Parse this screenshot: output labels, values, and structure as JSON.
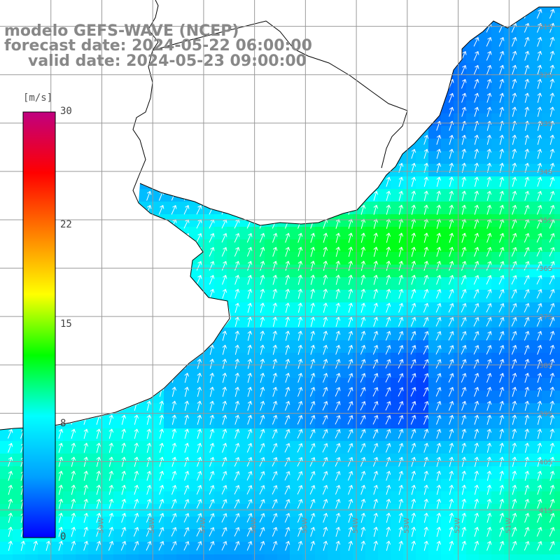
{
  "title": {
    "line1": "modelo GEFS-WAVE (NCEP)",
    "line2": "forecast date: 2024-05-22 06:00:00",
    "line3": "valid date: 2024-05-23 09:00:00"
  },
  "colorbar": {
    "unit": "[m/s]",
    "min": 0,
    "max": 30,
    "ticks": [
      {
        "value": 30,
        "label": "30"
      },
      {
        "value": 22,
        "label": "22"
      },
      {
        "value": 15,
        "label": "15"
      },
      {
        "value": 8,
        "label": "8"
      },
      {
        "value": 0,
        "label": "0"
      }
    ],
    "colors": [
      "#0000ff",
      "#00a0ff",
      "#00ffff",
      "#00ff00",
      "#ffff00",
      "#ff8000",
      "#ff0000",
      "#c00080"
    ]
  },
  "map": {
    "lon_min": -61,
    "lon_max": -50,
    "lat_min": -41.6,
    "lat_max": -30.6,
    "gridlines_lon": [
      -60,
      -59,
      -58,
      -57,
      -56,
      -55,
      -54,
      -53,
      -52,
      -51
    ],
    "gridlines_lat": [
      -31,
      -32,
      -33,
      -34,
      -35,
      -36,
      -37,
      -38,
      -39,
      -40,
      -41
    ],
    "lon_labels": [
      "60W",
      "59W",
      "58W",
      "57W",
      "56W",
      "55W",
      "54W",
      "53W",
      "52W",
      "51W"
    ],
    "lat_labels": [
      "31S",
      "32S",
      "33S",
      "34S",
      "35S",
      "36S",
      "37S",
      "38S",
      "39S",
      "40S",
      "41S"
    ],
    "land_color": "#ffffff",
    "gridline_color": "#999999",
    "coastline_color": "#000000",
    "arrow_color": "#ffffff",
    "wind_direction": "toward north-northeast"
  }
}
